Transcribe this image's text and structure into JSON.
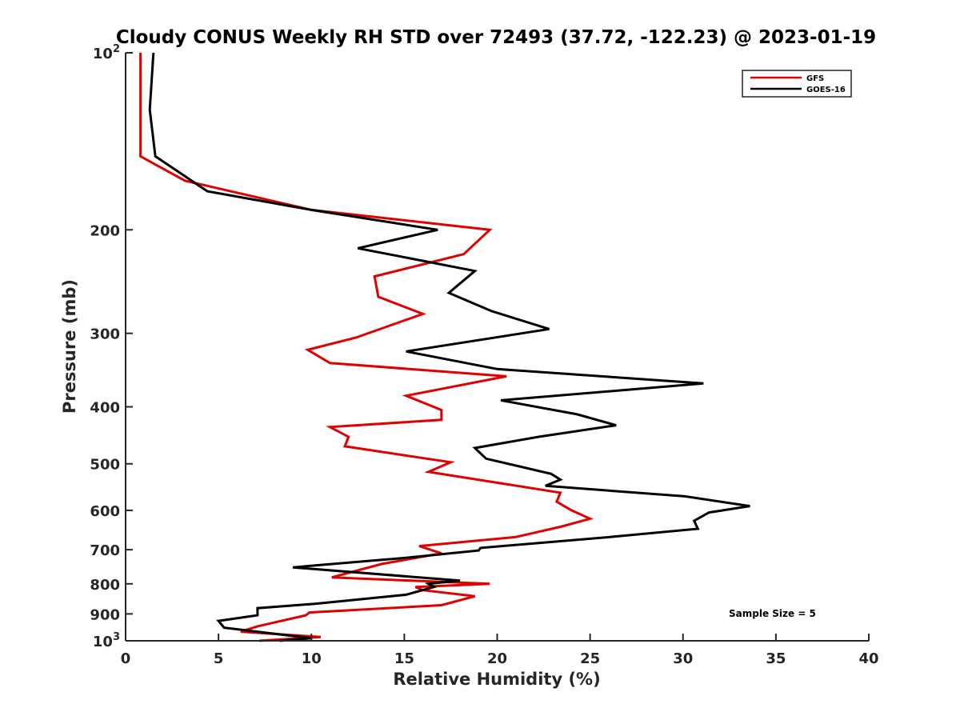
{
  "chart_data": {
    "type": "line",
    "title": "Cloudy CONUS Weekly RH STD over 72493 (37.72, -122.23) @ 2023-01-19",
    "xlabel": "Relative Humidity (%)",
    "ylabel": "Pressure (mb)",
    "xlim": [
      0,
      40
    ],
    "ylim": [
      100,
      1000
    ],
    "y_scale": "log",
    "y_reversed": true,
    "x_ticks": [
      "0",
      "5",
      "10",
      "15",
      "20",
      "25",
      "30",
      "35",
      "40"
    ],
    "y_ticks": [
      {
        "value": 100,
        "base": "10",
        "exp": "2"
      },
      {
        "value": 200,
        "label": "200"
      },
      {
        "value": 300,
        "label": "300"
      },
      {
        "value": 400,
        "label": "400"
      },
      {
        "value": 500,
        "label": "500"
      },
      {
        "value": 600,
        "label": "600"
      },
      {
        "value": 700,
        "label": "700"
      },
      {
        "value": 800,
        "label": "800"
      },
      {
        "value": 900,
        "label": "900"
      },
      {
        "value": 1000,
        "base": "10",
        "exp": "3"
      }
    ],
    "grid": false,
    "legend_position": "top-right",
    "annotation": "Sample Size = 5",
    "series": [
      {
        "name": "GFS",
        "color": "#e00000",
        "points": [
          [
            0.8,
            100
          ],
          [
            0.8,
            150
          ],
          [
            3.2,
            165
          ],
          [
            10.0,
            185
          ],
          [
            19.6,
            200
          ],
          [
            18.2,
            220
          ],
          [
            13.4,
            240
          ],
          [
            13.6,
            260
          ],
          [
            16.0,
            278
          ],
          [
            12.4,
            305
          ],
          [
            9.8,
            320
          ],
          [
            11.0,
            337
          ],
          [
            20.5,
            355
          ],
          [
            15.1,
            383
          ],
          [
            17.0,
            405
          ],
          [
            17.0,
            421
          ],
          [
            11.0,
            433
          ],
          [
            12.0,
            450
          ],
          [
            11.8,
            467
          ],
          [
            17.5,
            497
          ],
          [
            16.3,
            516
          ],
          [
            23.4,
            560
          ],
          [
            23.2,
            580
          ],
          [
            24.0,
            600
          ],
          [
            25.0,
            620
          ],
          [
            23.4,
            640
          ],
          [
            21.0,
            666
          ],
          [
            15.8,
            690
          ],
          [
            17.0,
            710
          ],
          [
            13.8,
            740
          ],
          [
            11.1,
            780
          ],
          [
            19.6,
            800
          ],
          [
            15.6,
            810
          ],
          [
            16.0,
            820
          ],
          [
            18.8,
            840
          ],
          [
            17.0,
            870
          ],
          [
            9.9,
            895
          ],
          [
            9.7,
            905
          ],
          [
            7.1,
            945
          ],
          [
            6.2,
            965
          ],
          [
            10.5,
            985
          ],
          [
            7.2,
            1000
          ]
        ]
      },
      {
        "name": "GOES-16",
        "color": "#000000",
        "points": [
          [
            1.5,
            100
          ],
          [
            1.3,
            125
          ],
          [
            1.6,
            150
          ],
          [
            4.4,
            172
          ],
          [
            10.0,
            185
          ],
          [
            16.8,
            200
          ],
          [
            12.5,
            215
          ],
          [
            18.8,
            235
          ],
          [
            17.4,
            256
          ],
          [
            19.7,
            275
          ],
          [
            22.8,
            295
          ],
          [
            15.1,
            322
          ],
          [
            20.0,
            345
          ],
          [
            31.1,
            365
          ],
          [
            20.2,
            390
          ],
          [
            24.3,
            412
          ],
          [
            26.4,
            430
          ],
          [
            22.2,
            450
          ],
          [
            18.8,
            470
          ],
          [
            19.4,
            490
          ],
          [
            22.9,
            520
          ],
          [
            23.4,
            532
          ],
          [
            22.6,
            545
          ],
          [
            30.1,
            568
          ],
          [
            33.6,
            590
          ],
          [
            31.4,
            605
          ],
          [
            30.6,
            625
          ],
          [
            30.8,
            645
          ],
          [
            26.3,
            665
          ],
          [
            19.1,
            695
          ],
          [
            19.0,
            702
          ],
          [
            15.2,
            722
          ],
          [
            9.0,
            750
          ],
          [
            18.0,
            790
          ],
          [
            16.3,
            800
          ],
          [
            16.6,
            810
          ],
          [
            15.1,
            835
          ],
          [
            10.2,
            865
          ],
          [
            7.1,
            880
          ],
          [
            7.1,
            905
          ],
          [
            5.0,
            925
          ],
          [
            5.3,
            950
          ],
          [
            10.0,
            990
          ],
          [
            8.3,
            1000
          ]
        ]
      }
    ]
  }
}
